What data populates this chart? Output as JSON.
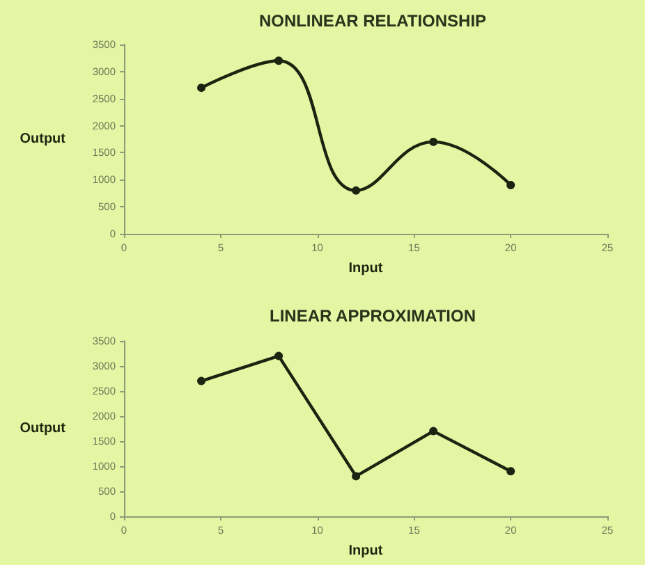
{
  "chart_data": [
    {
      "type": "line",
      "title": "NONLINEAR RELATIONSHIP",
      "xlabel": "Input",
      "ylabel": "Output",
      "x": [
        4,
        8,
        12,
        16,
        20
      ],
      "series": [
        {
          "color": "#1b2410",
          "values": [
            2700,
            3200,
            800,
            1700,
            900
          ]
        }
      ],
      "xlim": [
        0,
        25
      ],
      "xticks": [
        0,
        5,
        10,
        15,
        20,
        25
      ],
      "ylim": [
        0,
        3500
      ],
      "yticks": [
        0,
        500,
        1000,
        1500,
        2000,
        2500,
        3000,
        3500
      ],
      "marker": "circle",
      "line_style": "solid"
    },
    {
      "type": "line",
      "title": "LINEAR APPROXIMATION",
      "xlabel": "Input",
      "ylabel": "Output",
      "x": [
        4,
        8,
        12,
        16,
        20
      ],
      "series": [
        {
          "color": "#1b2410",
          "values": [
            2700,
            3200,
            800,
            1700,
            900
          ]
        }
      ],
      "xlim": [
        0,
        25
      ],
      "xticks": [
        0,
        5,
        10,
        15,
        20,
        25
      ],
      "ylim": [
        0,
        3500
      ],
      "yticks": [
        0,
        500,
        1000,
        1500,
        2000,
        2500,
        3000,
        3500
      ],
      "marker": "circle",
      "line_style": "solid"
    }
  ]
}
